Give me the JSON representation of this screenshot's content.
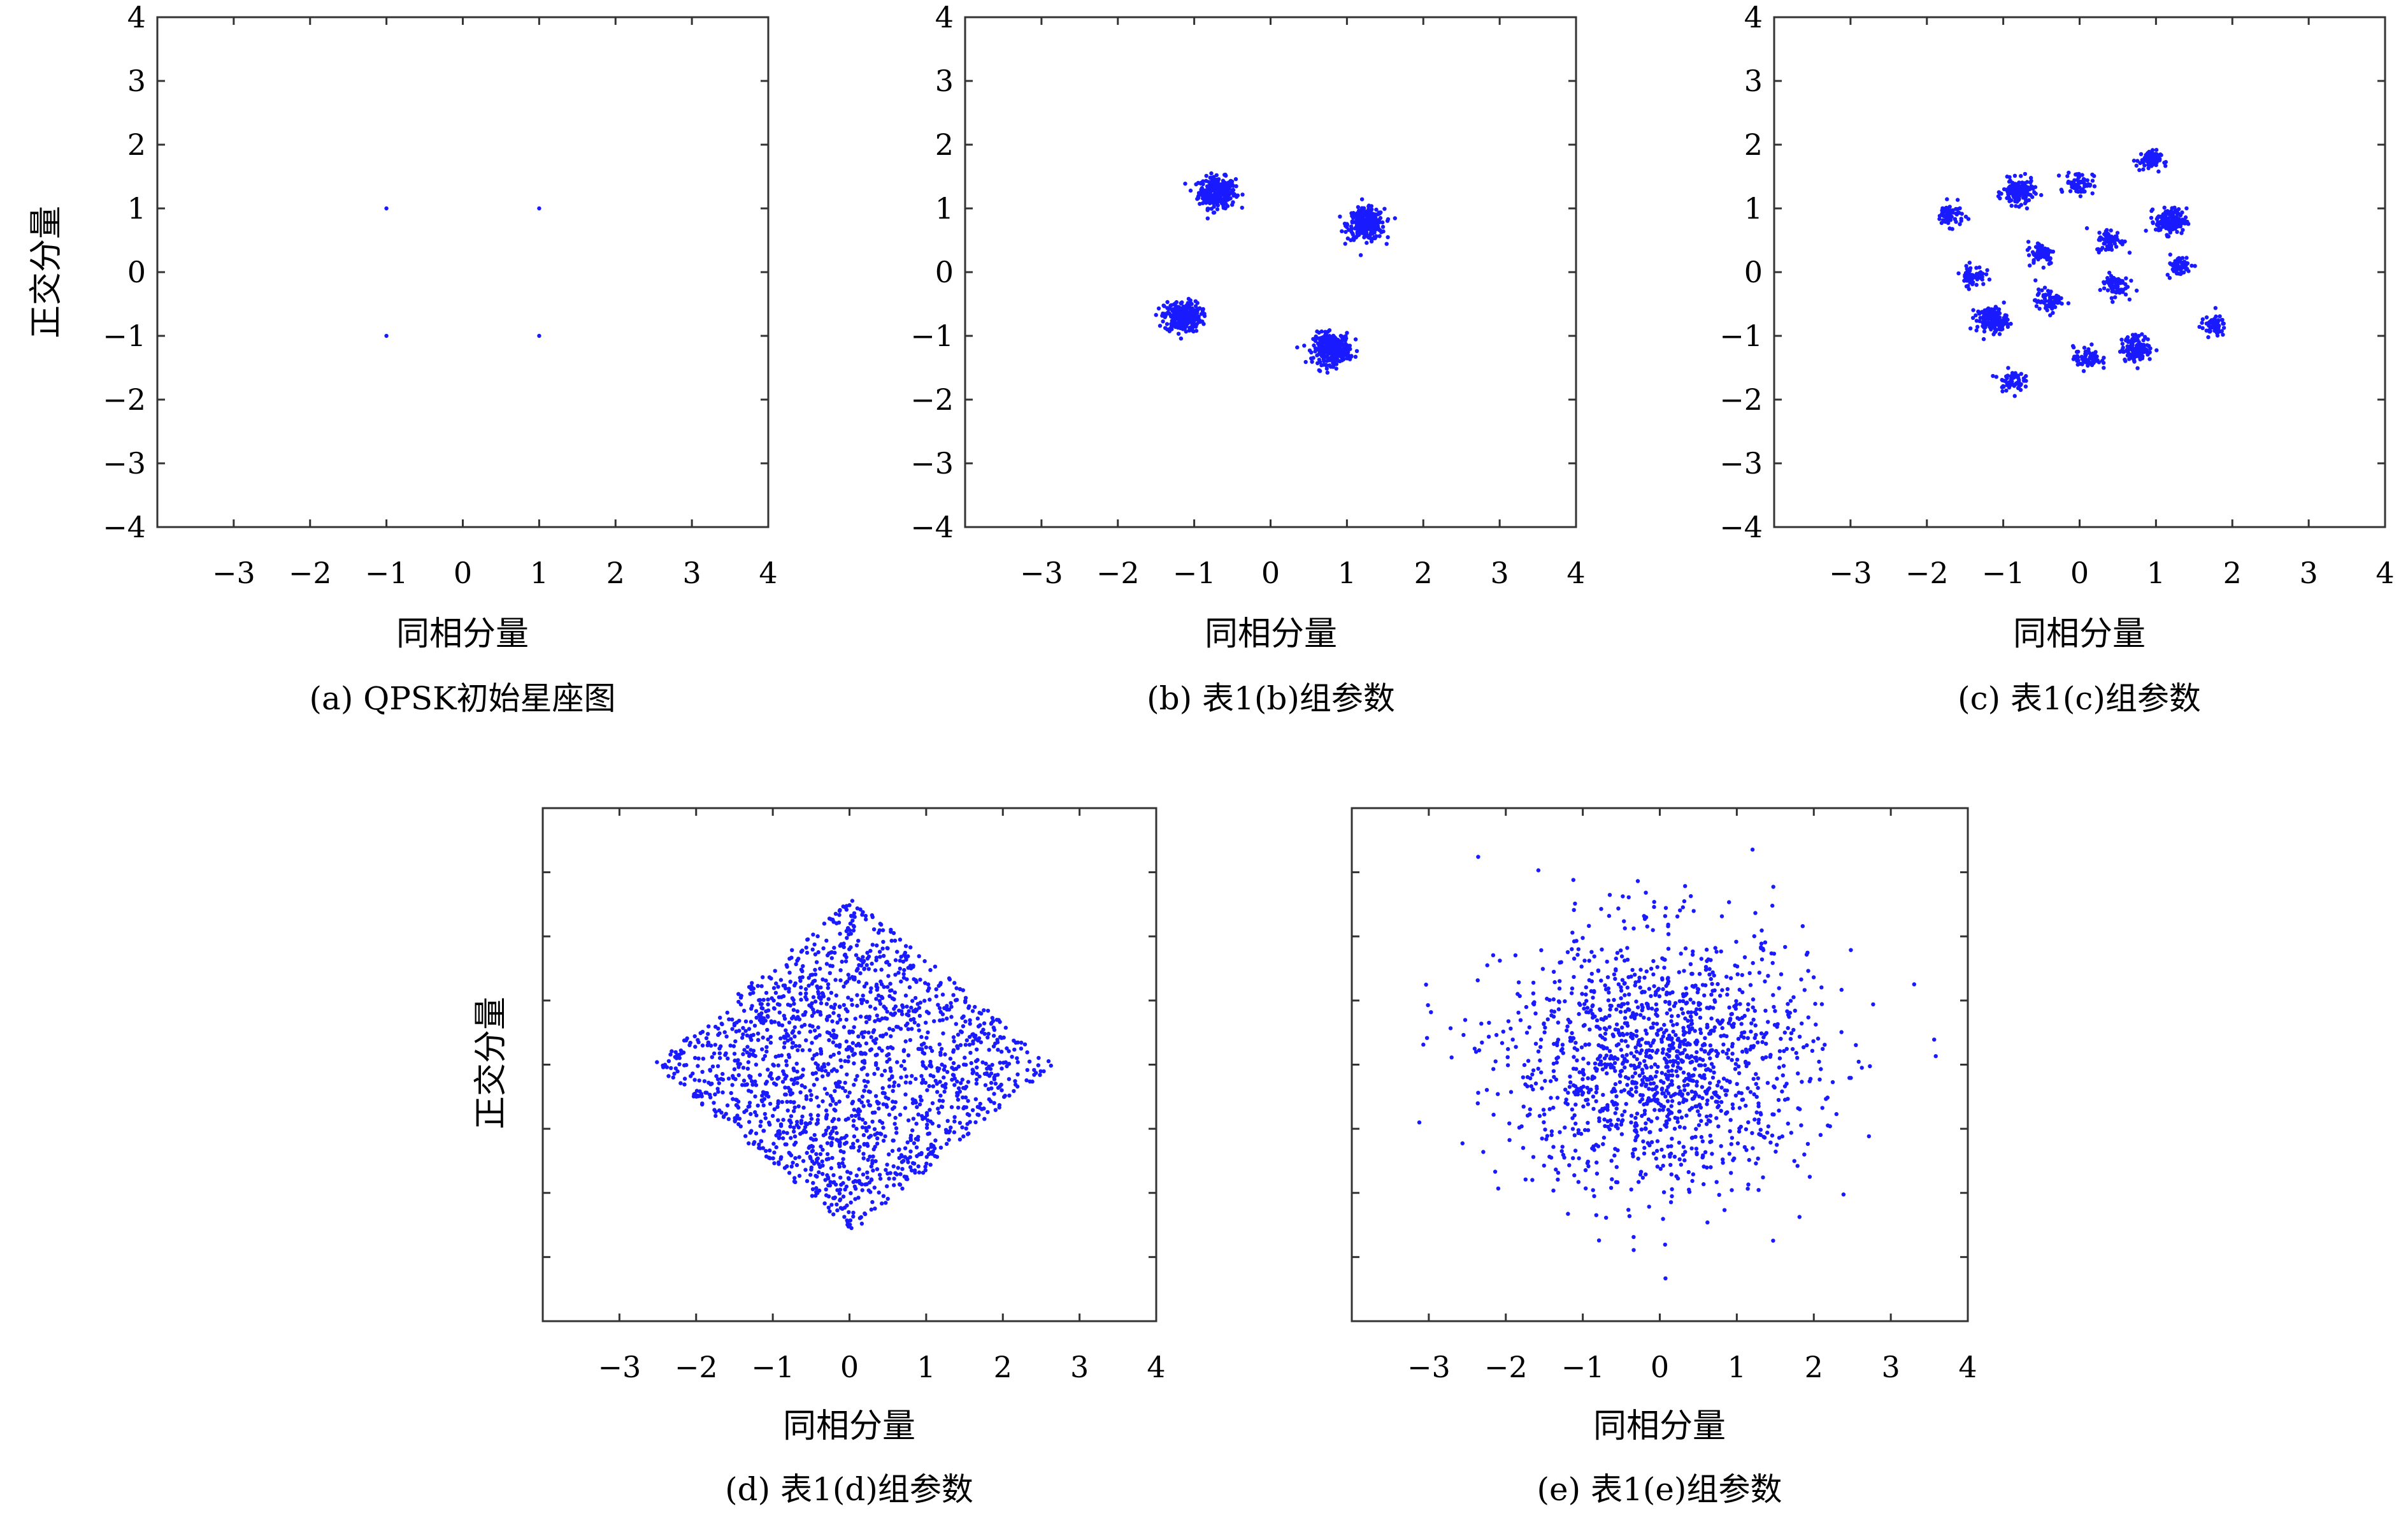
{
  "chart_data": [
    {
      "id": "a",
      "type": "scatter",
      "caption": "(a) QPSK初始星座图",
      "xlabel": "同相分量",
      "ylabel": "正交分量",
      "xlim": [
        -4,
        4
      ],
      "ylim": [
        -4,
        4
      ],
      "xticks": [
        "−3",
        "−2",
        "−1",
        "0",
        "1",
        "2",
        "3",
        "4"
      ],
      "yticks": [
        "4",
        "3",
        "2",
        "1",
        "0",
        "−1",
        "−2",
        "−3",
        "−4"
      ],
      "marker_color": "#1a1aff",
      "points": [
        [
          -1,
          1
        ],
        [
          1,
          1
        ],
        [
          -1,
          -1
        ],
        [
          1,
          -1
        ]
      ],
      "clusters": []
    },
    {
      "id": "b",
      "type": "scatter",
      "caption": "(b) 表1(b)组参数",
      "xlabel": "同相分量",
      "ylabel": "",
      "xlim": [
        -4,
        4
      ],
      "ylim": [
        -4,
        4
      ],
      "xticks": [
        "−3",
        "−2",
        "−1",
        "0",
        "1",
        "2",
        "3",
        "4"
      ],
      "yticks": [
        "4",
        "3",
        "2",
        "1",
        "0",
        "−1",
        "−2",
        "−3",
        "−4"
      ],
      "marker_color": "#1a1aff",
      "points": [],
      "clusters": [
        {
          "center": [
            -0.7,
            1.25
          ],
          "spread": 0.12,
          "count": 300
        },
        {
          "center": [
            1.25,
            0.75
          ],
          "spread": 0.12,
          "count": 300
        },
        {
          "center": [
            -1.15,
            -0.7
          ],
          "spread": 0.12,
          "count": 300
        },
        {
          "center": [
            0.8,
            -1.2
          ],
          "spread": 0.12,
          "count": 300
        }
      ]
    },
    {
      "id": "c",
      "type": "scatter",
      "caption": "(c) 表1(c)组参数",
      "xlabel": "同相分量",
      "ylabel": "",
      "xlim": [
        -4,
        4
      ],
      "ylim": [
        -4,
        4
      ],
      "xticks": [
        "−3",
        "−2",
        "−1",
        "0",
        "1",
        "2",
        "3",
        "4"
      ],
      "yticks": [
        "4",
        "3",
        "2",
        "1",
        "0",
        "−1",
        "−2",
        "−3",
        "−4"
      ],
      "marker_color": "#1a1aff",
      "points": [],
      "clusters": [
        {
          "center": [
            -1.7,
            0.9
          ],
          "spread": 0.09,
          "count": 60
        },
        {
          "center": [
            -0.8,
            1.25
          ],
          "spread": 0.1,
          "count": 150
        },
        {
          "center": [
            0.0,
            1.4
          ],
          "spread": 0.09,
          "count": 70
        },
        {
          "center": [
            0.9,
            1.75
          ],
          "spread": 0.08,
          "count": 70
        },
        {
          "center": [
            1.2,
            0.8
          ],
          "spread": 0.1,
          "count": 150
        },
        {
          "center": [
            -0.5,
            0.3
          ],
          "spread": 0.09,
          "count": 70
        },
        {
          "center": [
            0.4,
            0.5
          ],
          "spread": 0.09,
          "count": 70
        },
        {
          "center": [
            -1.4,
            -0.05
          ],
          "spread": 0.08,
          "count": 60
        },
        {
          "center": [
            1.3,
            0.1
          ],
          "spread": 0.08,
          "count": 60
        },
        {
          "center": [
            -1.15,
            -0.75
          ],
          "spread": 0.1,
          "count": 150
        },
        {
          "center": [
            -0.4,
            -0.45
          ],
          "spread": 0.09,
          "count": 70
        },
        {
          "center": [
            0.45,
            -0.2
          ],
          "spread": 0.09,
          "count": 70
        },
        {
          "center": [
            1.75,
            -0.85
          ],
          "spread": 0.08,
          "count": 60
        },
        {
          "center": [
            0.1,
            -1.35
          ],
          "spread": 0.09,
          "count": 70
        },
        {
          "center": [
            0.75,
            -1.2
          ],
          "spread": 0.1,
          "count": 150
        },
        {
          "center": [
            -0.9,
            -1.7
          ],
          "spread": 0.08,
          "count": 60
        }
      ]
    },
    {
      "id": "d",
      "type": "scatter",
      "caption": "(d) 表1(d)组参数",
      "xlabel": "同相分量",
      "ylabel": "正交分量",
      "xlim": [
        -4,
        4
      ],
      "ylim": [
        -4,
        4
      ],
      "xticks": [
        "−3",
        "−2",
        "−1",
        "0",
        "1",
        "2",
        "3",
        "4"
      ],
      "yticks": [],
      "marker_color": "#1a1aff",
      "points": [],
      "clusters": [
        {
          "shape": "diamond",
          "center": [
            0.05,
            0.0
          ],
          "radius": 2.6,
          "count": 1800
        }
      ]
    },
    {
      "id": "e",
      "type": "scatter",
      "caption": "(e) 表1(e)组参数",
      "xlabel": "同相分量",
      "ylabel": "",
      "xlim": [
        -4,
        4
      ],
      "ylim": [
        -4,
        4
      ],
      "xticks": [
        "−3",
        "−2",
        "−1",
        "0",
        "1",
        "2",
        "3",
        "4"
      ],
      "yticks": [],
      "marker_color": "#1a1aff",
      "points": [],
      "clusters": [
        {
          "center": [
            0.0,
            0.05
          ],
          "spread": 1.0,
          "count": 1500
        }
      ]
    }
  ]
}
